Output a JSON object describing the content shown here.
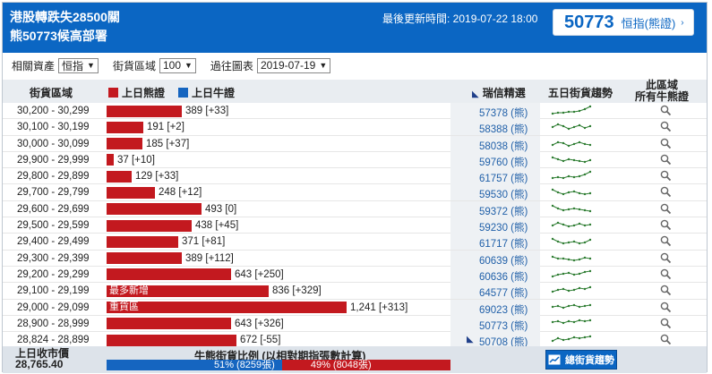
{
  "header": {
    "title_line1": "港股轉跌失28500關",
    "title_line2": "熊50773候高部署",
    "update": "最後更新時間: 2019-07-22 18:00",
    "badge_code": "50773",
    "badge_label": "恒指(熊證)"
  },
  "filters": {
    "asset_label": "相關資產",
    "asset_value": "恒指",
    "range_label": "街貨區域",
    "range_value": "100",
    "past_label": "過往圖表",
    "past_value": "2019-07-19"
  },
  "table_header": {
    "range": "街貨區域",
    "bear": "上日熊證",
    "bull": "上日牛證",
    "pick": "瑞信精選",
    "trend": "五日街貨趨勢",
    "all_line1": "此區域",
    "all_line2": "所有牛熊證"
  },
  "colors": {
    "bear": "#c3191f",
    "bull": "#1565c0",
    "header": "#0b66c3"
  },
  "rows": [
    {
      "range": "30,200 - 30,299",
      "value": 389,
      "label": "389 [+33]",
      "tag": "",
      "pick": "57378 (熊)"
    },
    {
      "range": "30,100 - 30,199",
      "value": 191,
      "label": "191 [+2]",
      "tag": "",
      "pick": "58388 (熊)"
    },
    {
      "range": "30,000 - 30,099",
      "value": 185,
      "label": "185 [+37]",
      "tag": "",
      "pick": "58038 (熊)"
    },
    {
      "range": "29,900 - 29,999",
      "value": 37,
      "label": "37 [+10]",
      "tag": "",
      "pick": "59760 (熊)"
    },
    {
      "range": "29,800 - 29,899",
      "value": 129,
      "label": "129 [+33]",
      "tag": "",
      "pick": "61757 (熊)"
    },
    {
      "range": "29,700 - 29,799",
      "value": 248,
      "label": "248 [+12]",
      "tag": "",
      "pick": "59530 (熊)"
    },
    {
      "range": "29,600 - 29,699",
      "value": 493,
      "label": "493 [0]",
      "tag": "",
      "pick": "59372 (熊)"
    },
    {
      "range": "29,500 - 29,599",
      "value": 438,
      "label": "438 [+45]",
      "tag": "",
      "pick": "59230 (熊)"
    },
    {
      "range": "29,400 - 29,499",
      "value": 371,
      "label": "371 [+81]",
      "tag": "",
      "pick": "61717 (熊)"
    },
    {
      "range": "29,300 - 29,399",
      "value": 389,
      "label": "389 [+112]",
      "tag": "",
      "pick": "60639 (熊)"
    },
    {
      "range": "29,200 - 29,299",
      "value": 643,
      "label": "643 [+250]",
      "tag": "",
      "pick": "60636 (熊)"
    },
    {
      "range": "29,100 - 29,199",
      "value": 836,
      "label": "836 [+329]",
      "tag": "最多新增",
      "pick": "64577 (熊)"
    },
    {
      "range": "29,000 - 29,099",
      "value": 1241,
      "label": "1,241 [+313]",
      "tag": "重貨區",
      "pick": "69023 (熊)"
    },
    {
      "range": "28,900 - 28,999",
      "value": 643,
      "label": "643 [+326]",
      "tag": "",
      "pick": "50773 (熊)"
    },
    {
      "range": "28,824 - 28,899",
      "value": 672,
      "label": "672 [-55]",
      "tag": "",
      "pick": "50708 (熊)",
      "pick_badge": "◣"
    }
  ],
  "footer": {
    "close_label": "上日收市價",
    "close_value": "28,765.40",
    "ratio_title": "牛熊街貨比例 (以相對期指張數計算)",
    "bull_pct": 51,
    "bull_text": "51% (8259張)",
    "bear_pct": 49,
    "bear_text": "49% (8048張)",
    "btn_label": "總街貨趨勢"
  }
}
